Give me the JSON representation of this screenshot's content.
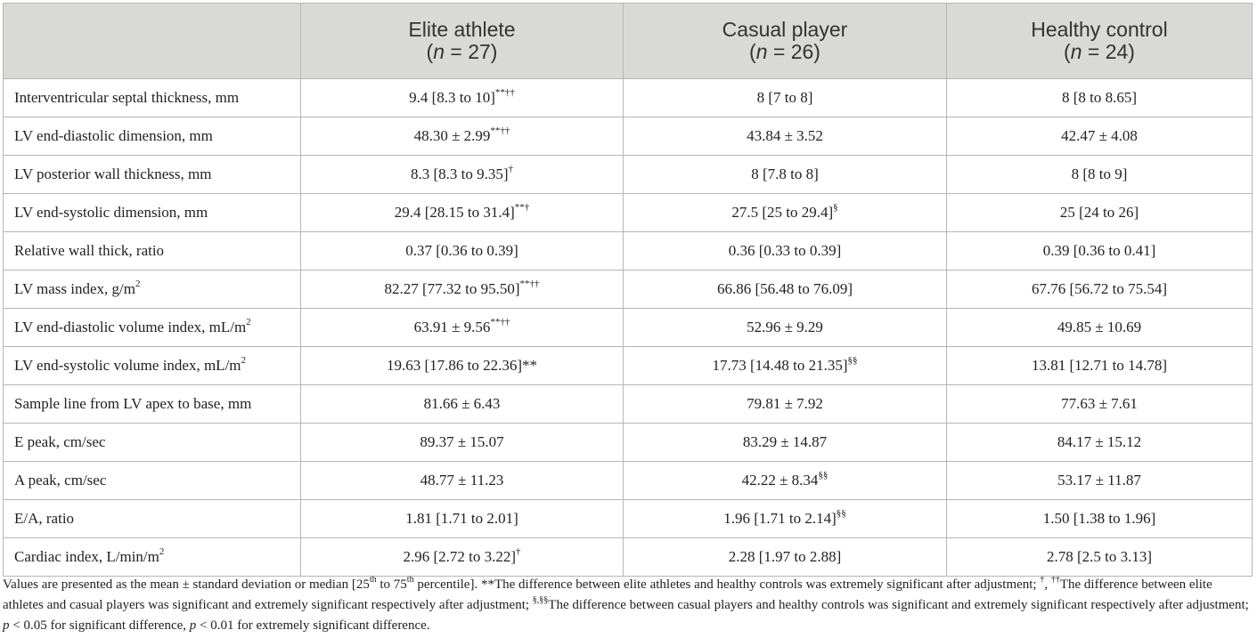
{
  "header": {
    "col1": "",
    "groups": [
      {
        "label": "Elite athlete",
        "n_prefix": "(",
        "n_var": "n",
        "n_suffix": " = 27)"
      },
      {
        "label": "Casual player",
        "n_prefix": "(",
        "n_var": "n",
        "n_suffix": " = 26)"
      },
      {
        "label": "Healthy control",
        "n_prefix": "(",
        "n_var": "n",
        "n_suffix": " = 24)"
      }
    ]
  },
  "rows": [
    {
      "label": "Interventricular septal thickness, mm",
      "label_sup": "",
      "label_after": "",
      "cells": [
        {
          "v": "9.4 [8.3 to 10]",
          "sup": "**††"
        },
        {
          "v": "8 [7 to 8]",
          "sup": ""
        },
        {
          "v": "8 [8 to 8.65]",
          "sup": ""
        }
      ]
    },
    {
      "label": "LV end-diastolic dimension, mm",
      "label_sup": "",
      "label_after": "",
      "cells": [
        {
          "v": "48.30 ± 2.99",
          "sup": "**††"
        },
        {
          "v": "43.84 ± 3.52",
          "sup": ""
        },
        {
          "v": "42.47 ± 4.08",
          "sup": ""
        }
      ]
    },
    {
      "label": "LV posterior wall thickness, mm",
      "label_sup": "",
      "label_after": "",
      "cells": [
        {
          "v": "8.3 [8.3 to 9.35]",
          "sup": "†"
        },
        {
          "v": "8 [7.8 to 8]",
          "sup": ""
        },
        {
          "v": "8 [8 to 9]",
          "sup": ""
        }
      ]
    },
    {
      "label": "LV end-systolic dimension, mm",
      "label_sup": "",
      "label_after": "",
      "cells": [
        {
          "v": "29.4 [28.15 to 31.4]",
          "sup": "**†"
        },
        {
          "v": "27.5 [25 to 29.4]",
          "sup": "§"
        },
        {
          "v": "25 [24 to 26]",
          "sup": ""
        }
      ]
    },
    {
      "label": "Relative wall thick, ratio",
      "label_sup": "",
      "label_after": "",
      "cells": [
        {
          "v": "0.37 [0.36 to 0.39]",
          "sup": ""
        },
        {
          "v": "0.36 [0.33 to 0.39]",
          "sup": ""
        },
        {
          "v": "0.39 [0.36 to 0.41]",
          "sup": ""
        }
      ]
    },
    {
      "label": "LV mass index, g/m",
      "label_sup": "2",
      "label_after": "",
      "cells": [
        {
          "v": "82.27 [77.32 to 95.50]",
          "sup": "**††"
        },
        {
          "v": "66.86 [56.48 to 76.09]",
          "sup": ""
        },
        {
          "v": "67.76 [56.72 to 75.54]",
          "sup": ""
        }
      ]
    },
    {
      "label": "LV end-diastolic volume index, mL/m",
      "label_sup": "2",
      "label_after": "",
      "cells": [
        {
          "v": "63.91 ± 9.56",
          "sup": "**††"
        },
        {
          "v": "52.96 ± 9.29",
          "sup": ""
        },
        {
          "v": "49.85 ± 10.69",
          "sup": ""
        }
      ]
    },
    {
      "label": "LV end-systolic volume index, mL/m",
      "label_sup": "2",
      "label_after": "",
      "cells": [
        {
          "v": "19.63 [17.86 to 22.36]**",
          "sup": ""
        },
        {
          "v": "17.73 [14.48 to 21.35]",
          "sup": "§§"
        },
        {
          "v": "13.81 [12.71 to 14.78]",
          "sup": ""
        }
      ]
    },
    {
      "label": "Sample line from LV apex to base, mm",
      "label_sup": "",
      "label_after": "",
      "cells": [
        {
          "v": "81.66 ± 6.43",
          "sup": ""
        },
        {
          "v": "79.81 ± 7.92",
          "sup": ""
        },
        {
          "v": "77.63 ± 7.61",
          "sup": ""
        }
      ]
    },
    {
      "label": "E peak, cm/sec",
      "label_sup": "",
      "label_after": "",
      "cells": [
        {
          "v": "89.37 ± 15.07",
          "sup": ""
        },
        {
          "v": "83.29 ± 14.87",
          "sup": ""
        },
        {
          "v": "84.17 ± 15.12",
          "sup": ""
        }
      ]
    },
    {
      "label": "A peak, cm/sec",
      "label_sup": "",
      "label_after": "",
      "cells": [
        {
          "v": "48.77 ± 11.23",
          "sup": ""
        },
        {
          "v": "42.22 ± 8.34",
          "sup": "§§"
        },
        {
          "v": "53.17 ± 11.87",
          "sup": ""
        }
      ]
    },
    {
      "label": "E/A, ratio",
      "label_sup": "",
      "label_after": "",
      "cells": [
        {
          "v": "1.81 [1.71 to 2.01]",
          "sup": ""
        },
        {
          "v": "1.96 [1.71 to 2.14]",
          "sup": "§§"
        },
        {
          "v": "1.50 [1.38 to 1.96]",
          "sup": ""
        }
      ]
    },
    {
      "label": "Cardiac index, L/min/m",
      "label_sup": "2",
      "label_after": "",
      "cells": [
        {
          "v": "2.96 [2.72 to 3.22]",
          "sup": "†"
        },
        {
          "v": "2.28 [1.97 to 2.88]",
          "sup": ""
        },
        {
          "v": "2.78 [2.5 to 3.13]",
          "sup": ""
        }
      ]
    }
  ],
  "footnote": {
    "t1": "Values are presented as the mean ± standard deviation or median [25",
    "s1": "th",
    "t2": " to 75",
    "s2": "th",
    "t3": " percentile]. **The difference between elite athletes and healthy controls was extremely significant after adjustment; ",
    "s3": "†",
    "t4": ", ",
    "s4": "††",
    "t5": "The difference between elite athletes and casual players was significant and extremely significant respectively after adjustment; ",
    "s5": "§,§§",
    "t6": "The difference between casual players and healthy controls was significant and extremely significant respectively after adjustment; ",
    "p1": "p",
    "t7": " < 0.05 for significant difference, ",
    "p2": "p",
    "t8": " < 0.01 for extremely significant difference."
  }
}
